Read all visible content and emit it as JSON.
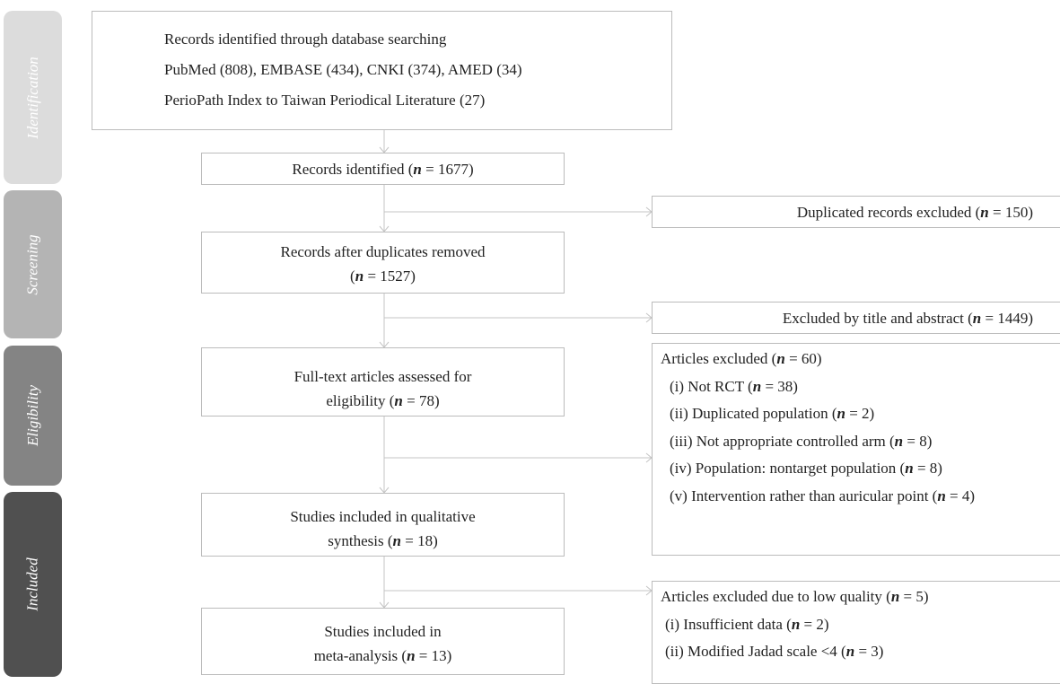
{
  "phases": [
    {
      "label": "Identification",
      "color": "#dcdcdc"
    },
    {
      "label": "Screening",
      "color": "#b4b4b4"
    },
    {
      "label": "Eligibility",
      "color": "#848484"
    },
    {
      "label": "Included",
      "color": "#505050"
    }
  ],
  "search": {
    "lines": [
      "Records identified through database searching",
      "PubMed (808), EMBASE (434), CNKI (374), AMED (34)",
      "PerioPath Index to Taiwan Periodical Literature (27)"
    ]
  },
  "identified": {
    "text": "Records identified (",
    "n": "n",
    "value": " = 1677)"
  },
  "after_duplicates": {
    "line1": "Records after duplicates removed",
    "line2_pre": "(",
    "n": "n",
    "line2_post": " = 1527)"
  },
  "fulltext": {
    "line1": "Full-text articles assessed for",
    "line2_pre": "eligibility (",
    "n": "n",
    "line2_post": " = 78)"
  },
  "qualitative": {
    "line1": "Studies included in qualitative",
    "line2_pre": "synthesis (",
    "n": "n",
    "line2_post": " = 18)"
  },
  "meta": {
    "line1": "Studies included in",
    "line2_pre": "meta-analysis (",
    "n": "n",
    "line2_post": " = 13)"
  },
  "duplicates_excluded": {
    "pre": "Duplicated records excluded (",
    "n": "n",
    "post": " = 150)"
  },
  "title_abstract_excluded": {
    "pre": "Excluded by title and abstract (",
    "n": "n",
    "post": " = 1449)"
  },
  "eligibility_excluded": {
    "header_pre": "Articles excluded (",
    "header_n": "n",
    "header_post": " = 60)",
    "items": [
      {
        "pre": "(i) Not RCT (",
        "n": "n",
        "post": " = 38)"
      },
      {
        "pre": "(ii) Duplicated population (",
        "n": "n",
        "post": " = 2)"
      },
      {
        "pre": "(iii) Not appropriate controlled arm (",
        "n": "n",
        "post": " = 8)"
      },
      {
        "pre": "(iv) Population: nontarget population (",
        "n": "n",
        "post": " = 8)"
      },
      {
        "pre": "(v) Intervention rather than auricular point (",
        "n": "n",
        "post": " = 4)"
      }
    ]
  },
  "quality_excluded": {
    "header_pre": "Articles excluded due to low quality (",
    "header_n": "n",
    "header_post": " = 5)",
    "items": [
      {
        "pre": "(i) Insufficient data (",
        "n": "n",
        "post": " = 2)"
      },
      {
        "pre": "(ii) Modified Jadad scale <4 (",
        "n": "n",
        "post": " = 3)"
      }
    ]
  }
}
